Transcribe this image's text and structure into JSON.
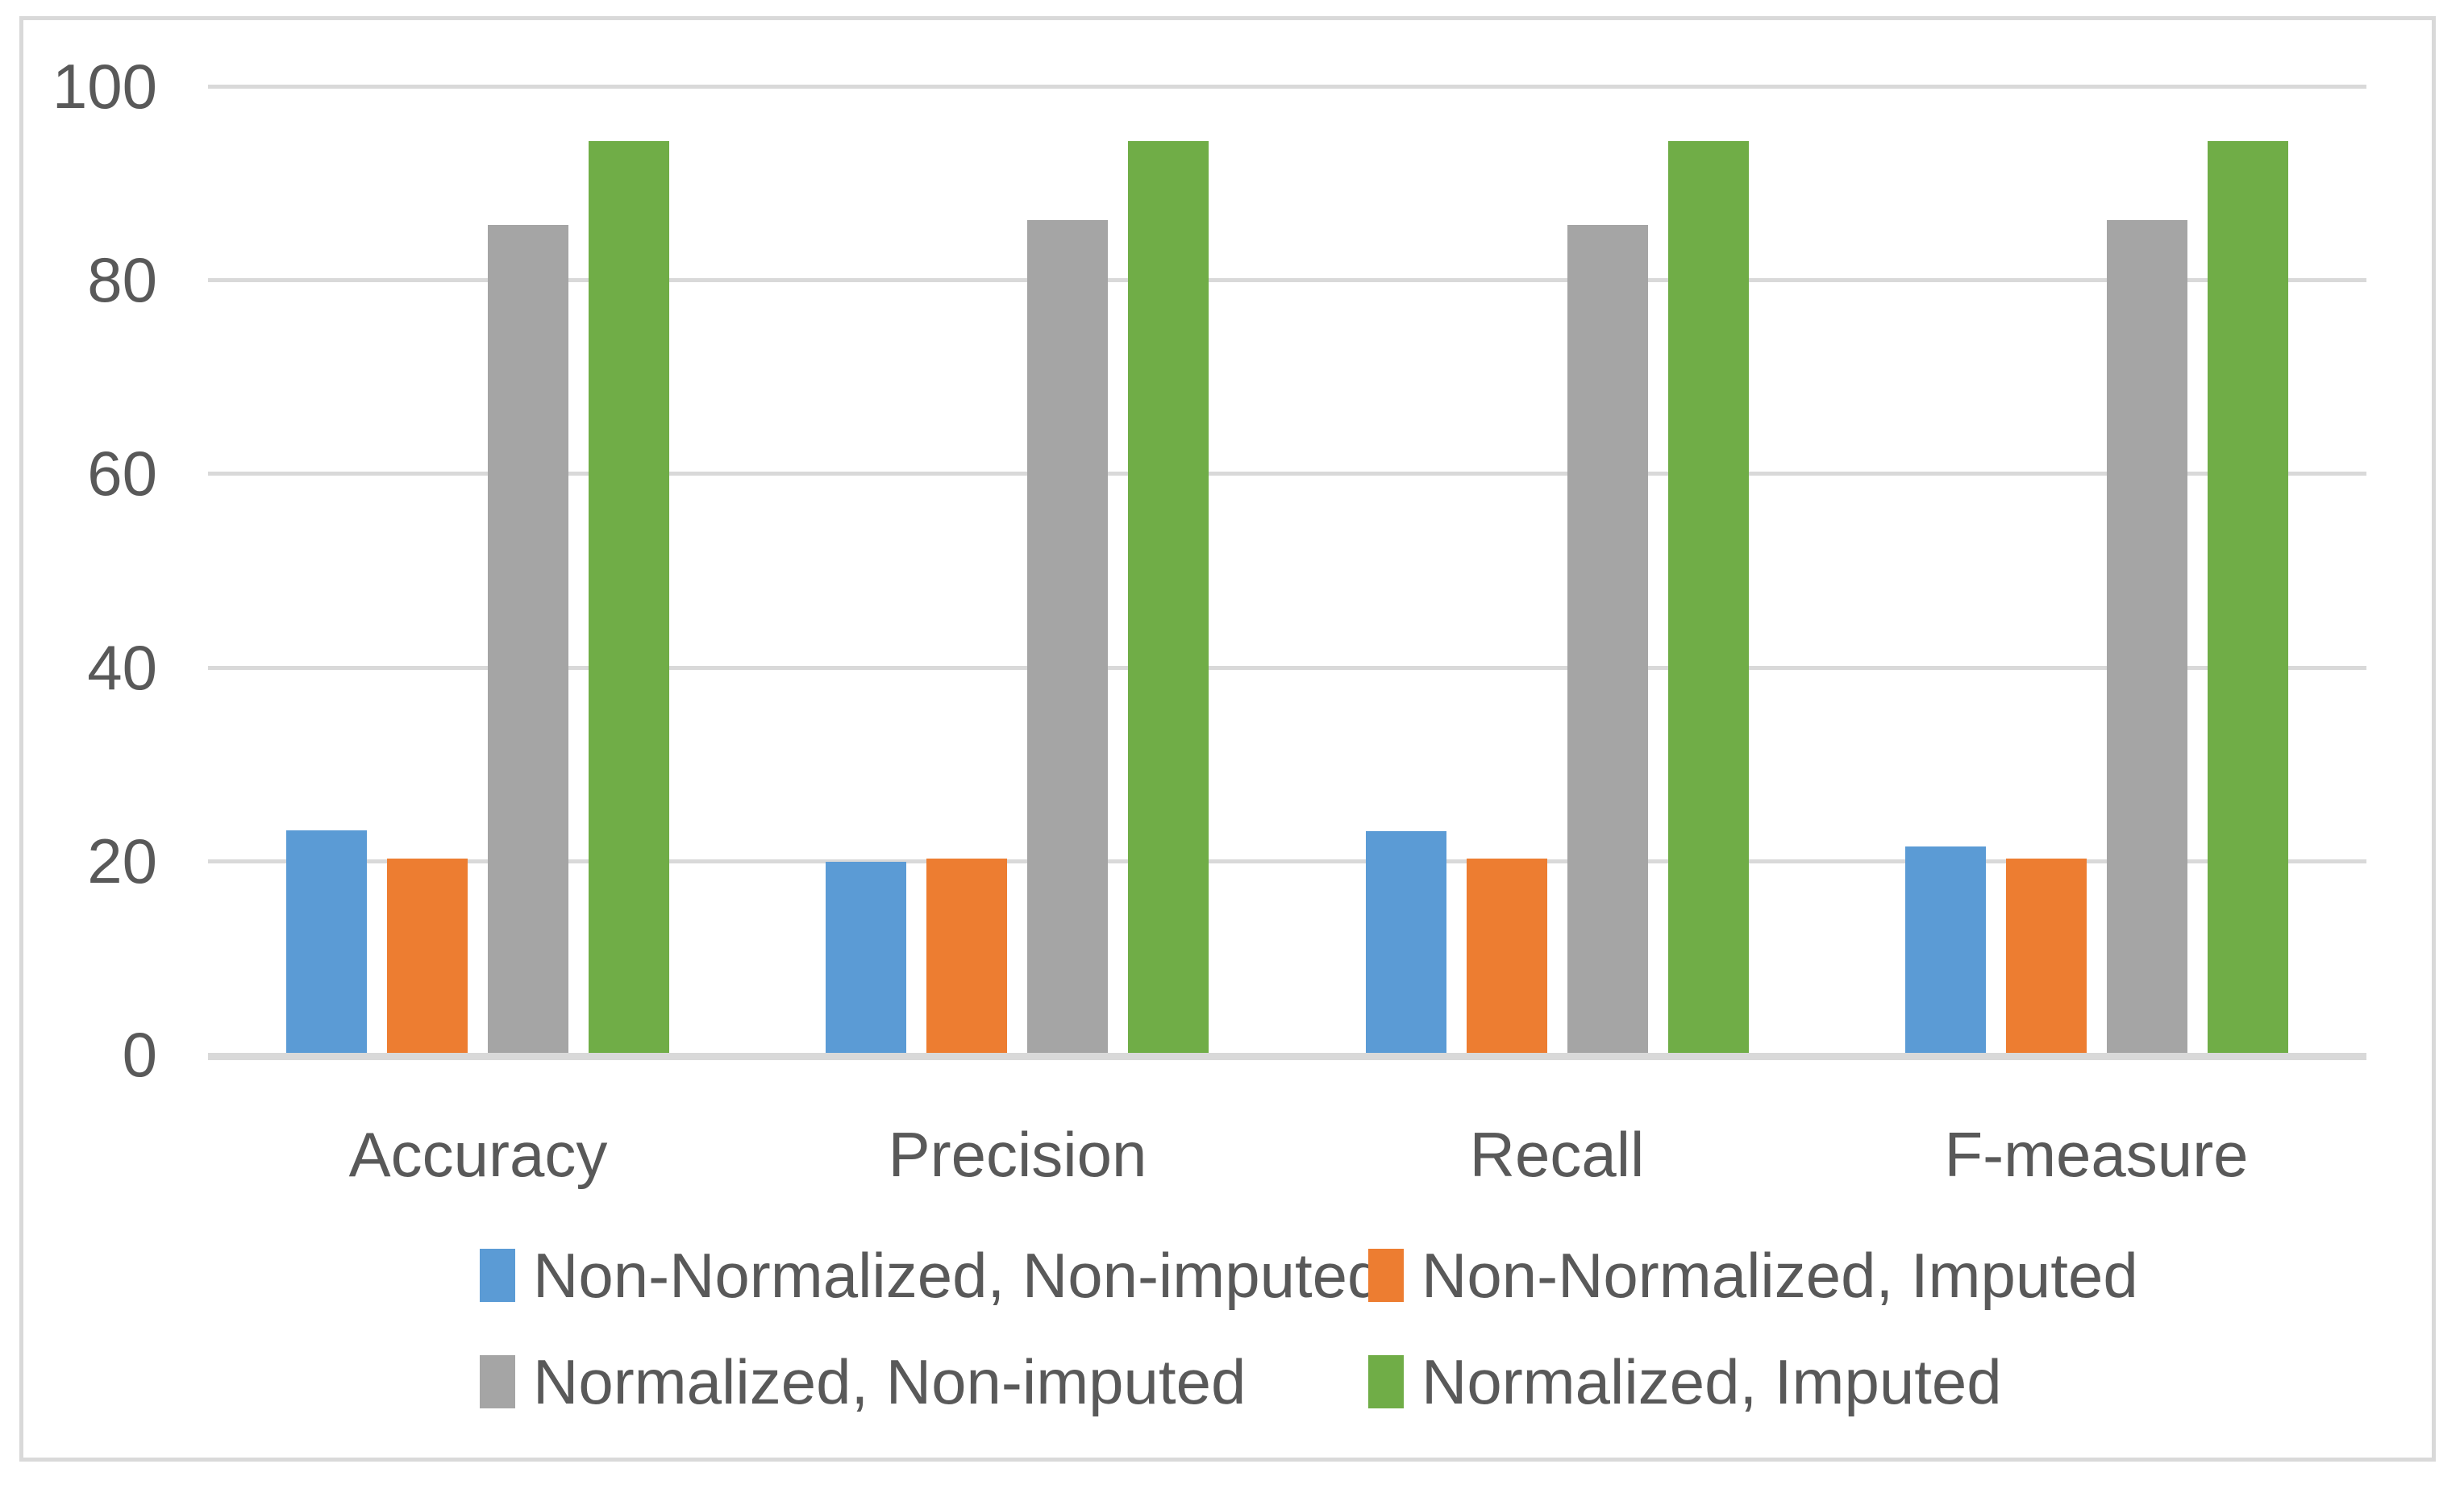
{
  "chart_data": {
    "type": "bar",
    "title": "",
    "xlabel": "",
    "ylabel": "",
    "categories": [
      "Accuracy",
      "Precision",
      "Recall",
      "F-measure"
    ],
    "series": [
      {
        "name": "Non-Normalized, Non-imputed",
        "color": "#5B9BD5",
        "values": [
          23.0,
          19.7,
          22.9,
          21.3
        ]
      },
      {
        "name": "Non-Normalized, Imputed",
        "color": "#ED7D31",
        "values": [
          20.1,
          20.1,
          20.1,
          20.1
        ]
      },
      {
        "name": "Normalized, Non-imputed",
        "color": "#A5A5A5",
        "values": [
          85.5,
          86.0,
          85.5,
          86.0
        ]
      },
      {
        "name": "Normalized, Imputed",
        "color": "#70AD47",
        "values": [
          94.2,
          94.2,
          94.2,
          94.2
        ]
      }
    ],
    "ylim": [
      0,
      100
    ],
    "yticks": [
      0,
      20,
      40,
      60,
      80,
      100
    ],
    "grid": true,
    "legend_position": "bottom",
    "legend_rows": [
      [
        "Non-Normalized, Non-imputed",
        "Non-Normalized, Imputed"
      ],
      [
        "Normalized, Non-imputed",
        "Normalized, Imputed"
      ]
    ]
  },
  "styles": {
    "background": "#FFFFFF",
    "frame_border": "#D9D9D9",
    "gridline": "#D9D9D9",
    "axis_line": "#D9D9D9",
    "text": "#595959"
  }
}
